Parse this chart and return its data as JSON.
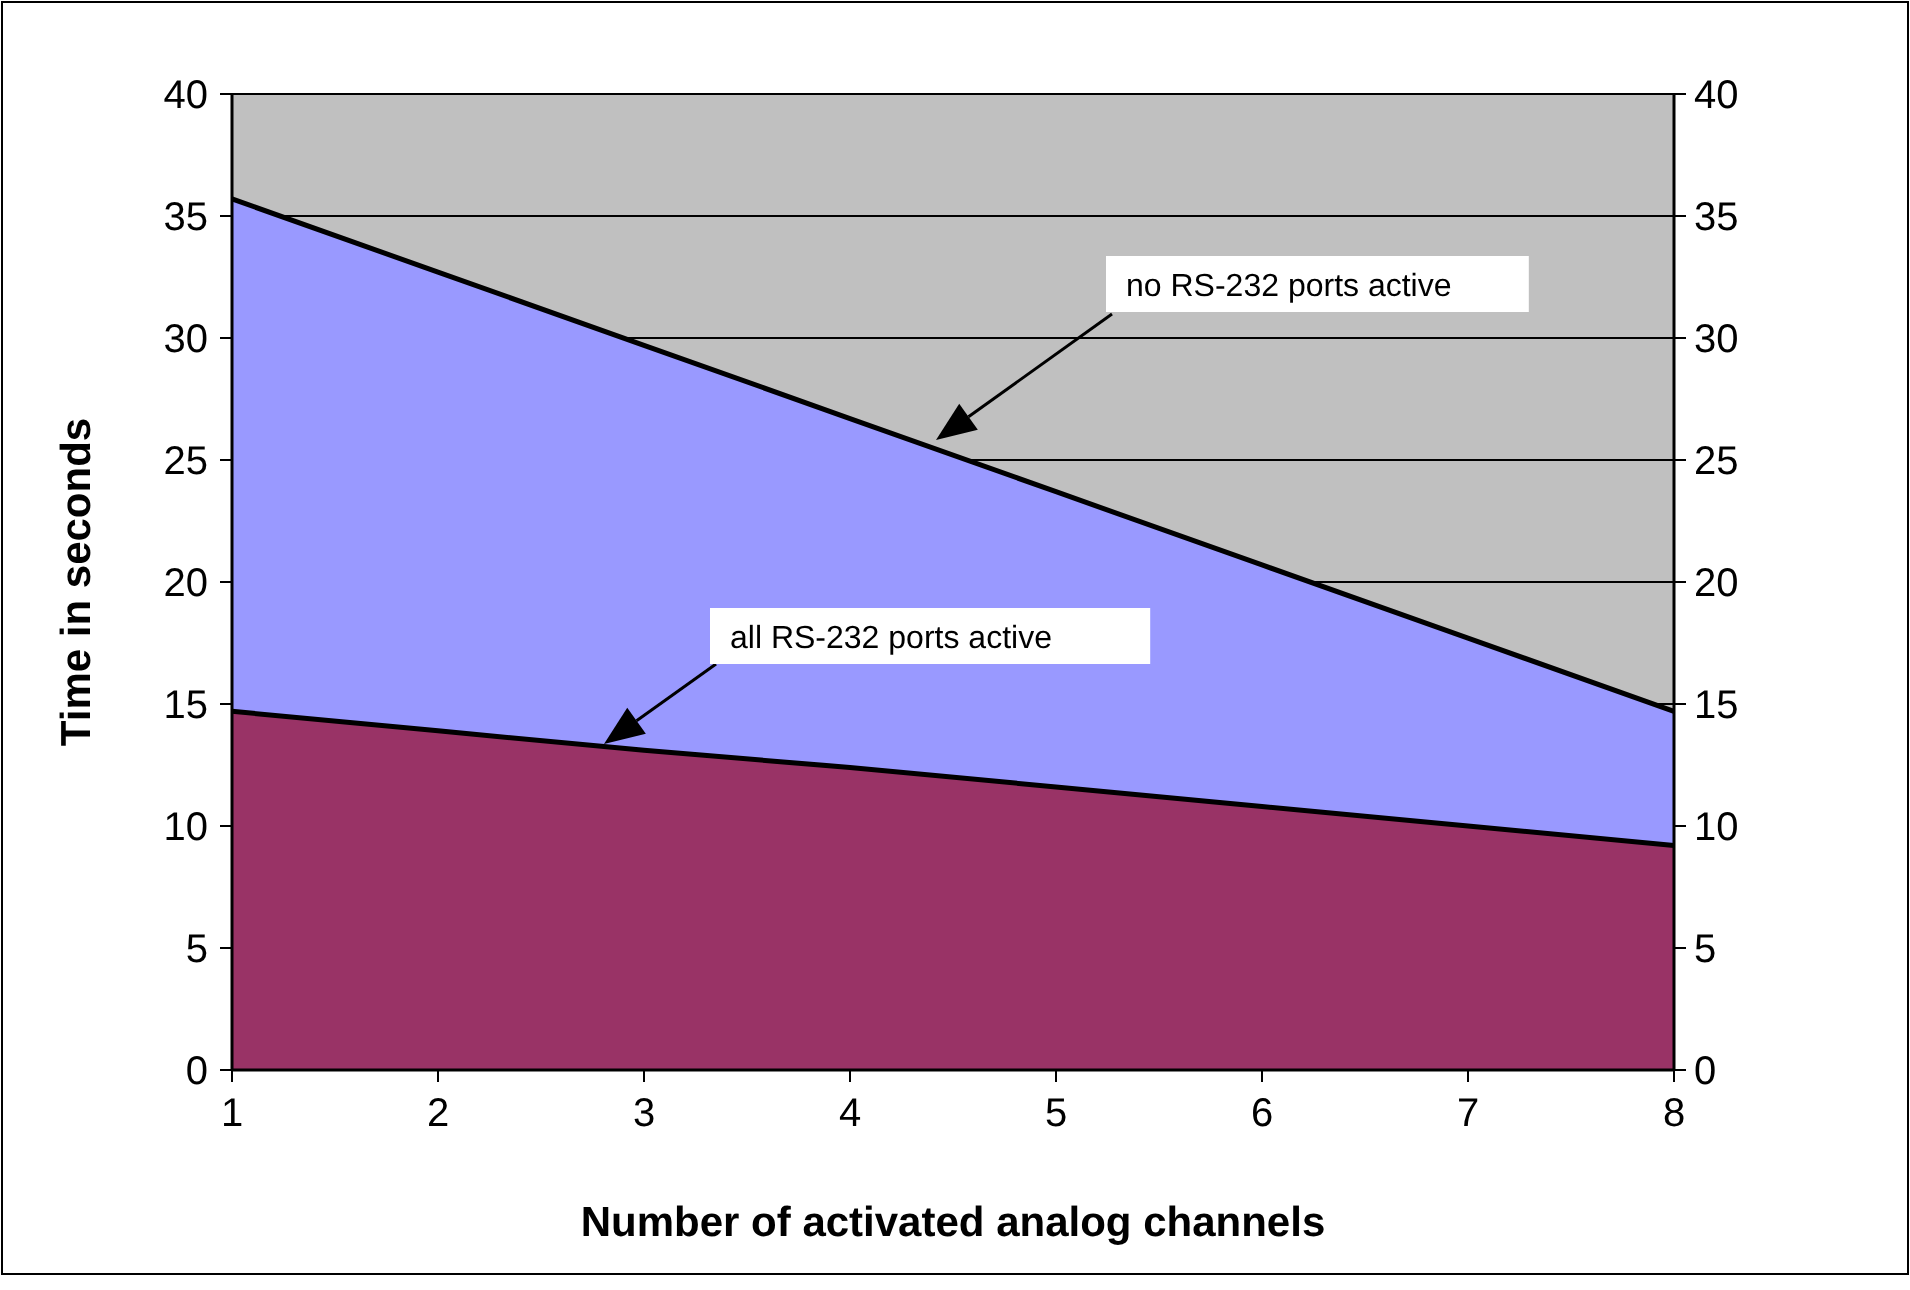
{
  "chart_data": {
    "type": "area",
    "xlabel": "Number of activated analog channels",
    "ylabel": "Time in seconds",
    "x": [
      1,
      2,
      3,
      4,
      5,
      6,
      7,
      8
    ],
    "series": [
      {
        "color": "#9999ff",
        "values": [
          35.7,
          32.7,
          29.7,
          26.7,
          23.7,
          20.7,
          17.7,
          14.7
        ]
      },
      {
        "color": "#993366",
        "values": [
          14.7,
          13.9,
          13.1,
          12.4,
          11.6,
          10.8,
          10.0,
          9.2
        ]
      }
    ],
    "xlim": [
      1,
      8
    ],
    "xticks": [
      1,
      2,
      3,
      4,
      5,
      6,
      7,
      8
    ],
    "ylim": [
      0,
      40
    ],
    "yticks": [
      0,
      5,
      10,
      15,
      20,
      25,
      30,
      35,
      40
    ],
    "y2lim": [
      0,
      40
    ],
    "y2ticks": [
      0,
      5,
      10,
      15,
      20,
      25,
      30,
      35,
      40
    ],
    "grid": "y",
    "annotations": [
      "no RS-232 ports active",
      "all RS-232 ports active"
    ]
  }
}
